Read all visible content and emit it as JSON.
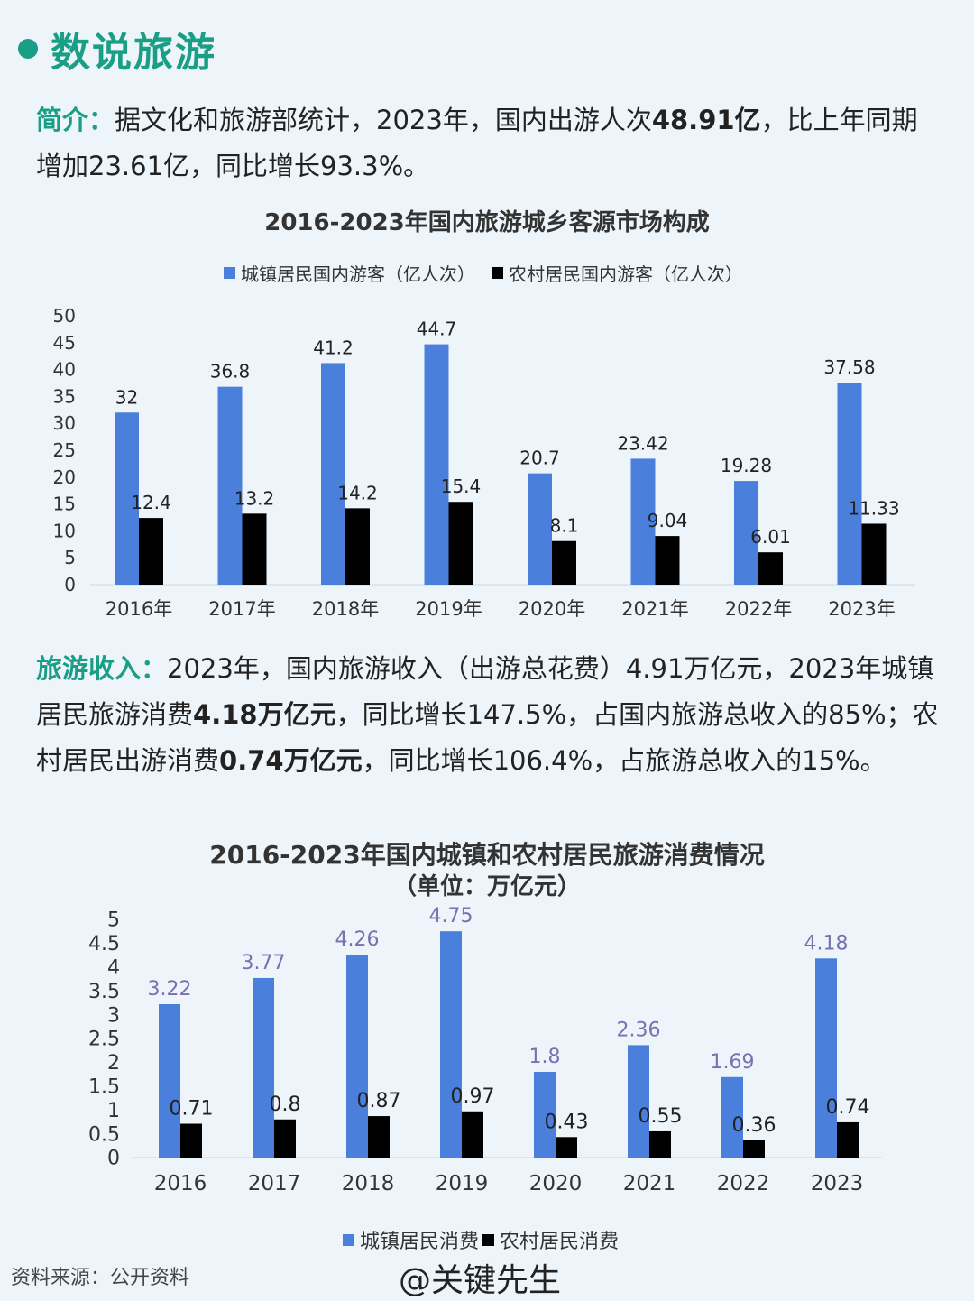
{
  "header": {
    "title": "数说旅游"
  },
  "intro": {
    "label": "简介：",
    "text1": "据文化和旅游部统计，2023年，国内出游人次",
    "bold1": "48.91亿",
    "text2": "，比上年同期增加23.61亿，同比增长93.3%。"
  },
  "income": {
    "label": "旅游收入：",
    "text1": "2023年，国内旅游收入（出游总花费）4.91万亿元，2023年城镇居民旅游消费",
    "bold1": "4.18万亿元",
    "text2": "，同比增长147.5%，占国内旅游总收入的85%；农村居民出游消费",
    "bold2": "0.74万亿元",
    "text3": "，同比增长106.4%，占旅游总收入的15%。"
  },
  "colors": {
    "accent": "#1a9e86",
    "urban": "#4a7fdc",
    "rural": "#000000"
  },
  "chart_data": [
    {
      "type": "bar",
      "title": "2016-2023年国内旅游城乡客源市场构成",
      "categories": [
        "2016年",
        "2017年",
        "2018年",
        "2019年",
        "2020年",
        "2021年",
        "2022年",
        "2023年"
      ],
      "series": [
        {
          "name": "城镇居民国内游客（亿人次）",
          "values": [
            32,
            36.8,
            41.2,
            44.7,
            20.7,
            23.42,
            19.28,
            37.58
          ]
        },
        {
          "name": "农村居民国内游客（亿人次）",
          "values": [
            12.4,
            13.2,
            14.2,
            15.4,
            8.1,
            9.04,
            6.01,
            11.33
          ]
        }
      ],
      "yticks": [
        "0",
        "5",
        "10",
        "15",
        "20",
        "25",
        "30",
        "35",
        "40",
        "45",
        "50"
      ],
      "ylim": [
        0,
        50
      ],
      "legend": "top"
    },
    {
      "type": "bar",
      "title": "2016-2023年国内城镇和农村居民旅游消费情况",
      "subtitle": "（单位：万亿元）",
      "categories": [
        "2016",
        "2017",
        "2018",
        "2019",
        "2020",
        "2021",
        "2022",
        "2023"
      ],
      "series": [
        {
          "name": "城镇居民消费",
          "values": [
            3.22,
            3.77,
            4.26,
            4.75,
            1.8,
            2.36,
            1.69,
            4.18
          ]
        },
        {
          "name": "农村居民消费",
          "values": [
            0.71,
            0.8,
            0.87,
            0.97,
            0.43,
            0.55,
            0.36,
            0.74
          ]
        }
      ],
      "yticks": [
        "0",
        "0.5",
        "1",
        "1.5",
        "2",
        "2.5",
        "3",
        "3.5",
        "4",
        "4.5",
        "5"
      ],
      "ylim": [
        0,
        5
      ],
      "legend": "bottom"
    }
  ],
  "footer": {
    "source": "资料来源：公开资料",
    "handle": "@关键先生"
  }
}
